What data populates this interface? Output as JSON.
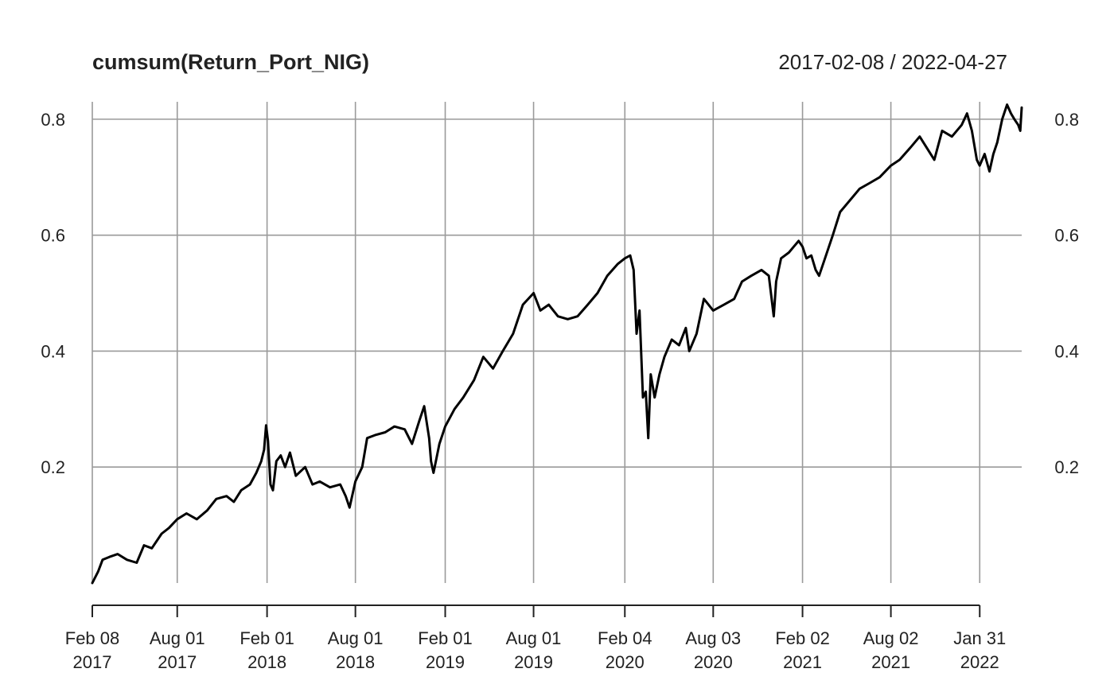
{
  "chart_data": {
    "type": "line",
    "title": "cumsum(Return_Port_NIG)",
    "date_range_label": "2017-02-08 / 2022-04-27",
    "xlabel": "",
    "ylabel": "",
    "ylim": [
      0.0,
      0.83
    ],
    "xlim": [
      "2017-02-08",
      "2022-04-27"
    ],
    "grid": true,
    "legend": "none",
    "y_ticks": [
      "0.2",
      "0.4",
      "0.6",
      "0.8"
    ],
    "x_ticks": [
      {
        "date": "2017-02-08",
        "line1": "Feb 08",
        "line2": "2017"
      },
      {
        "date": "2017-08-01",
        "line1": "Aug 01",
        "line2": "2017"
      },
      {
        "date": "2018-02-01",
        "line1": "Feb 01",
        "line2": "2018"
      },
      {
        "date": "2018-08-01",
        "line1": "Aug 01",
        "line2": "2018"
      },
      {
        "date": "2019-02-01",
        "line1": "Feb 01",
        "line2": "2019"
      },
      {
        "date": "2019-08-01",
        "line1": "Aug 01",
        "line2": "2019"
      },
      {
        "date": "2020-02-04",
        "line1": "Feb 04",
        "line2": "2020"
      },
      {
        "date": "2020-08-03",
        "line1": "Aug 03",
        "line2": "2020"
      },
      {
        "date": "2021-02-02",
        "line1": "Feb 02",
        "line2": "2021"
      },
      {
        "date": "2021-08-02",
        "line1": "Aug 02",
        "line2": "2021"
      },
      {
        "date": "2022-01-31",
        "line1": "Jan 31",
        "line2": "2022"
      }
    ],
    "series": [
      {
        "color": "#000000",
        "points": [
          [
            "2017-02-08",
            0.0
          ],
          [
            "2017-02-20",
            0.02
          ],
          [
            "2017-03-01",
            0.04
          ],
          [
            "2017-03-15",
            0.045
          ],
          [
            "2017-04-01",
            0.05
          ],
          [
            "2017-04-20",
            0.04
          ],
          [
            "2017-05-10",
            0.035
          ],
          [
            "2017-05-25",
            0.065
          ],
          [
            "2017-06-10",
            0.06
          ],
          [
            "2017-06-30",
            0.085
          ],
          [
            "2017-07-15",
            0.095
          ],
          [
            "2017-08-01",
            0.11
          ],
          [
            "2017-08-20",
            0.12
          ],
          [
            "2017-09-10",
            0.11
          ],
          [
            "2017-10-01",
            0.125
          ],
          [
            "2017-10-20",
            0.145
          ],
          [
            "2017-11-10",
            0.15
          ],
          [
            "2017-11-25",
            0.14
          ],
          [
            "2017-12-10",
            0.16
          ],
          [
            "2017-12-28",
            0.17
          ],
          [
            "2018-01-10",
            0.19
          ],
          [
            "2018-01-20",
            0.21
          ],
          [
            "2018-01-26",
            0.23
          ],
          [
            "2018-01-30",
            0.272
          ],
          [
            "2018-02-03",
            0.245
          ],
          [
            "2018-02-08",
            0.17
          ],
          [
            "2018-02-13",
            0.16
          ],
          [
            "2018-02-20",
            0.21
          ],
          [
            "2018-03-01",
            0.22
          ],
          [
            "2018-03-10",
            0.2
          ],
          [
            "2018-03-20",
            0.225
          ],
          [
            "2018-04-01",
            0.185
          ],
          [
            "2018-04-20",
            0.2
          ],
          [
            "2018-05-05",
            0.17
          ],
          [
            "2018-05-20",
            0.175
          ],
          [
            "2018-06-10",
            0.165
          ],
          [
            "2018-07-01",
            0.17
          ],
          [
            "2018-07-12",
            0.15
          ],
          [
            "2018-07-20",
            0.13
          ],
          [
            "2018-08-01",
            0.175
          ],
          [
            "2018-08-15",
            0.2
          ],
          [
            "2018-08-25",
            0.25
          ],
          [
            "2018-09-10",
            0.255
          ],
          [
            "2018-10-01",
            0.26
          ],
          [
            "2018-10-20",
            0.27
          ],
          [
            "2018-11-10",
            0.265
          ],
          [
            "2018-11-25",
            0.24
          ],
          [
            "2018-12-10",
            0.28
          ],
          [
            "2018-12-20",
            0.305
          ],
          [
            "2018-12-30",
            0.25
          ],
          [
            "2019-01-03",
            0.21
          ],
          [
            "2019-01-08",
            0.19
          ],
          [
            "2019-01-20",
            0.24
          ],
          [
            "2019-02-01",
            0.27
          ],
          [
            "2019-02-20",
            0.3
          ],
          [
            "2019-03-10",
            0.32
          ],
          [
            "2019-04-01",
            0.35
          ],
          [
            "2019-04-20",
            0.39
          ],
          [
            "2019-05-10",
            0.37
          ],
          [
            "2019-05-30",
            0.4
          ],
          [
            "2019-06-20",
            0.43
          ],
          [
            "2019-07-10",
            0.48
          ],
          [
            "2019-08-01",
            0.5
          ],
          [
            "2019-08-15",
            0.47
          ],
          [
            "2019-09-01",
            0.48
          ],
          [
            "2019-09-20",
            0.46
          ],
          [
            "2019-10-10",
            0.455
          ],
          [
            "2019-10-30",
            0.46
          ],
          [
            "2019-11-20",
            0.48
          ],
          [
            "2019-12-10",
            0.5
          ],
          [
            "2019-12-30",
            0.53
          ],
          [
            "2020-01-20",
            0.55
          ],
          [
            "2020-02-04",
            0.56
          ],
          [
            "2020-02-15",
            0.565
          ],
          [
            "2020-02-22",
            0.54
          ],
          [
            "2020-02-28",
            0.43
          ],
          [
            "2020-03-05",
            0.47
          ],
          [
            "2020-03-12",
            0.32
          ],
          [
            "2020-03-18",
            0.33
          ],
          [
            "2020-03-23",
            0.25
          ],
          [
            "2020-03-28",
            0.36
          ],
          [
            "2020-04-05",
            0.32
          ],
          [
            "2020-04-15",
            0.36
          ],
          [
            "2020-04-25",
            0.39
          ],
          [
            "2020-05-10",
            0.42
          ],
          [
            "2020-05-25",
            0.41
          ],
          [
            "2020-06-08",
            0.44
          ],
          [
            "2020-06-15",
            0.4
          ],
          [
            "2020-06-30",
            0.43
          ],
          [
            "2020-07-15",
            0.49
          ],
          [
            "2020-08-03",
            0.47
          ],
          [
            "2020-08-25",
            0.48
          ],
          [
            "2020-09-15",
            0.49
          ],
          [
            "2020-10-01",
            0.52
          ],
          [
            "2020-10-20",
            0.53
          ],
          [
            "2020-11-10",
            0.54
          ],
          [
            "2020-11-25",
            0.53
          ],
          [
            "2020-12-05",
            0.46
          ],
          [
            "2020-12-10",
            0.52
          ],
          [
            "2020-12-20",
            0.56
          ],
          [
            "2021-01-05",
            0.57
          ],
          [
            "2021-01-15",
            0.58
          ],
          [
            "2021-01-25",
            0.59
          ],
          [
            "2021-02-02",
            0.58
          ],
          [
            "2021-02-10",
            0.56
          ],
          [
            "2021-02-20",
            0.565
          ],
          [
            "2021-03-01",
            0.54
          ],
          [
            "2021-03-08",
            0.53
          ],
          [
            "2021-03-20",
            0.56
          ],
          [
            "2021-04-05",
            0.6
          ],
          [
            "2021-04-20",
            0.64
          ],
          [
            "2021-05-10",
            0.66
          ],
          [
            "2021-05-30",
            0.68
          ],
          [
            "2021-06-20",
            0.69
          ],
          [
            "2021-07-10",
            0.7
          ],
          [
            "2021-08-02",
            0.72
          ],
          [
            "2021-08-20",
            0.73
          ],
          [
            "2021-09-10",
            0.75
          ],
          [
            "2021-09-30",
            0.77
          ],
          [
            "2021-10-15",
            0.75
          ],
          [
            "2021-10-30",
            0.73
          ],
          [
            "2021-11-15",
            0.78
          ],
          [
            "2021-12-05",
            0.77
          ],
          [
            "2021-12-25",
            0.79
          ],
          [
            "2022-01-05",
            0.81
          ],
          [
            "2022-01-15",
            0.78
          ],
          [
            "2022-01-25",
            0.73
          ],
          [
            "2022-01-31",
            0.72
          ],
          [
            "2022-02-10",
            0.74
          ],
          [
            "2022-02-20",
            0.71
          ],
          [
            "2022-02-28",
            0.74
          ],
          [
            "2022-03-08",
            0.76
          ],
          [
            "2022-03-18",
            0.8
          ],
          [
            "2022-03-28",
            0.825
          ],
          [
            "2022-04-05",
            0.81
          ],
          [
            "2022-04-12",
            0.8
          ],
          [
            "2022-04-20",
            0.79
          ],
          [
            "2022-04-24",
            0.78
          ],
          [
            "2022-04-27",
            0.82
          ]
        ]
      }
    ]
  }
}
